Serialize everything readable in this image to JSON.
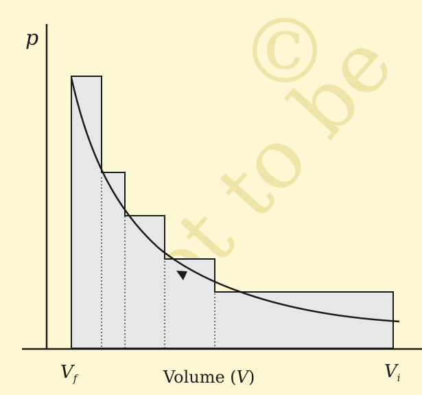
{
  "labels": {
    "y_axis": "p",
    "v_final": "V",
    "v_final_sub": "f",
    "v_initial": "V",
    "v_initial_sub": "i",
    "x_axis_prefix": "Volume (",
    "x_axis_var": "V",
    "x_axis_suffix": ")"
  },
  "watermark": "© not to be",
  "colors": {
    "background": "#fdf8d3",
    "step_fill": "#e6e7e8",
    "line": "#1a1a1a",
    "watermark": "#efe4a8"
  }
}
